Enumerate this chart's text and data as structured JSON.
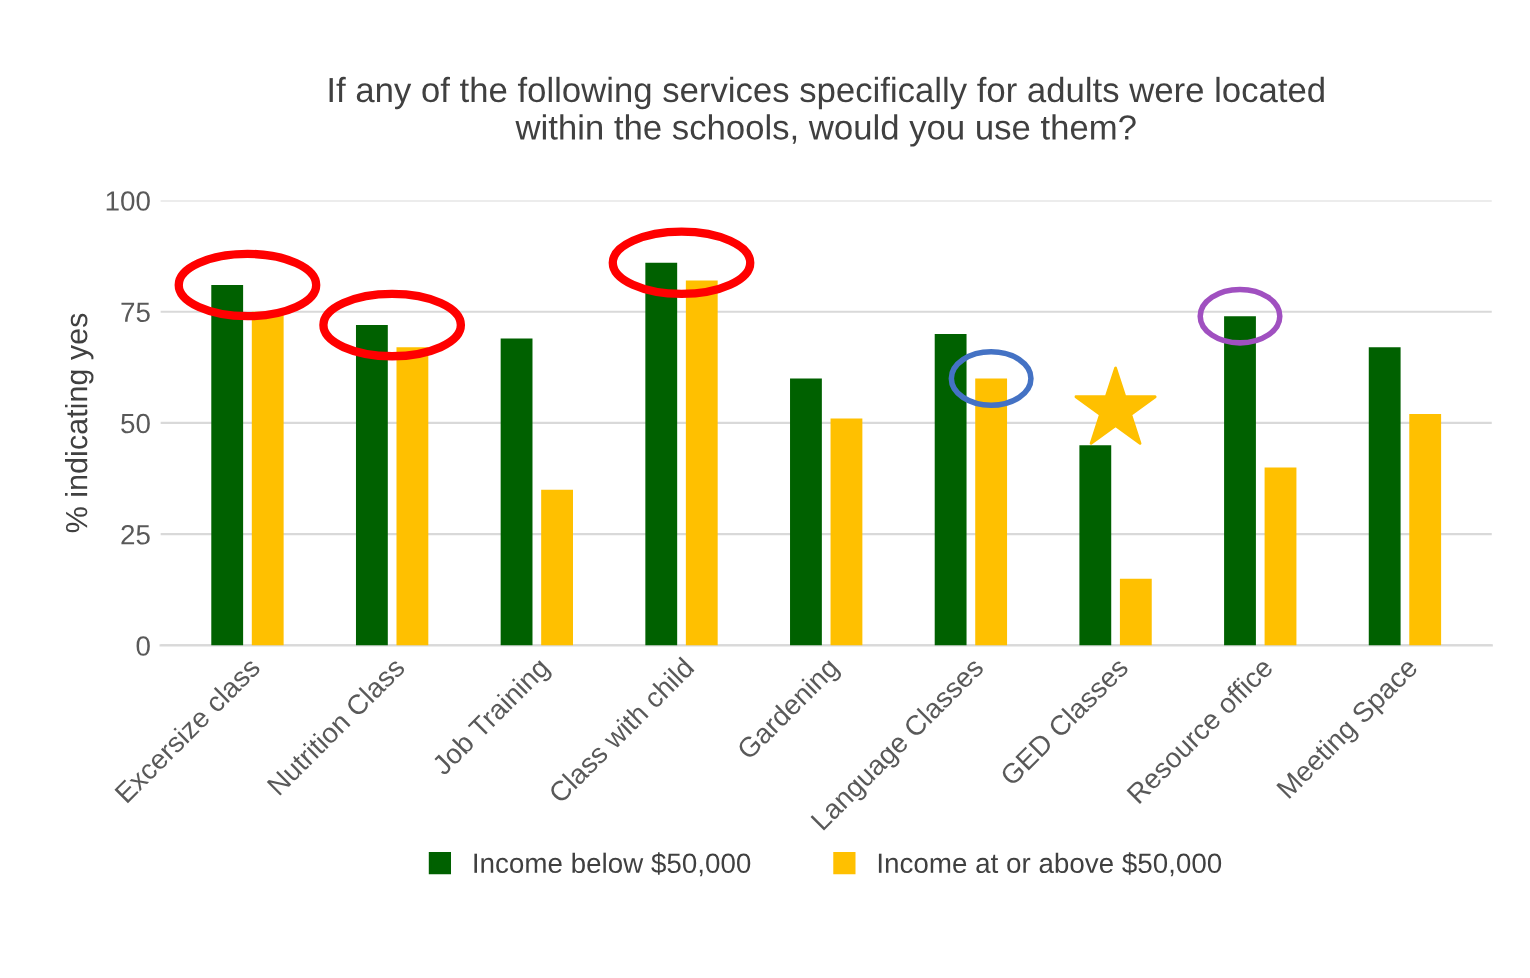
{
  "chart_data": {
    "type": "bar",
    "title": "If any of the following services specifically for adults were located\nwithin the schools, would you use them?",
    "ylabel": "% indicating yes",
    "categories": [
      "Excersize class",
      "Nutrition Class",
      "Job Training",
      "Class with child",
      "Gardening",
      "Language Classes",
      "GED Classes",
      "Resource office",
      "Meeting Space"
    ],
    "series": [
      {
        "name": "Income below $50,000",
        "color": "#006100",
        "values": [
          81,
          72,
          69,
          86,
          60,
          70,
          45,
          74,
          67
        ]
      },
      {
        "name": "Income at or above $50,000",
        "color": "#ffc000",
        "values": [
          75,
          67,
          35,
          82,
          51,
          60,
          15,
          40,
          52
        ]
      }
    ],
    "ylim": [
      0,
      100
    ],
    "yticks": [
      0,
      25,
      50,
      75,
      100
    ],
    "grid": "y",
    "legend": "bottom"
  }
}
